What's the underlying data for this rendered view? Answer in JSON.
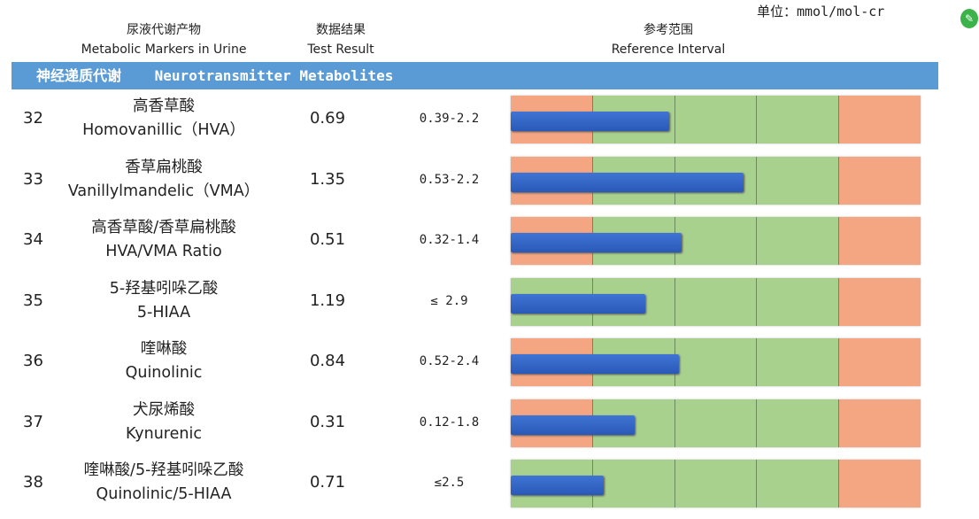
{
  "unit_label": "单位：mmol/mol-cr",
  "headers": {
    "marker_cn": "尿液代谢产物",
    "marker_en": "Metabolic Markers in Urine",
    "result_cn": "数据结果",
    "result_en": "Test Result",
    "ref_cn": "参考范围",
    "ref_en": "Reference Interval"
  },
  "section": {
    "cn": "神经递质代谢",
    "en": "Neurotransmitter Metabolites"
  },
  "colors": {
    "band": "#5b9bd5",
    "out_of_range": "#f4a582",
    "in_range": "#a9d18e",
    "bar": "#2f63c6"
  },
  "rows": [
    {
      "num": "32",
      "cn": "高香草酸",
      "en": "Homovanillic（HVA）",
      "value": "0.69",
      "ref": "0.39-2.2",
      "segments": [
        "o",
        "g",
        "g",
        "g",
        "o"
      ],
      "bar_fraction": 0.387
    },
    {
      "num": "33",
      "cn": "香草扁桃酸",
      "en": "Vanillylmandelic（VMA）",
      "value": "1.35",
      "ref": "0.53-2.2",
      "segments": [
        "o",
        "g",
        "g",
        "g",
        "o"
      ],
      "bar_fraction": 0.568
    },
    {
      "num": "34",
      "cn": "高香草酸/香草扁桃酸",
      "en": "HVA/VMA Ratio",
      "value": "0.51",
      "ref": "0.32-1.4",
      "segments": [
        "o",
        "g",
        "g",
        "g",
        "o"
      ],
      "bar_fraction": 0.417
    },
    {
      "num": "35",
      "cn": "5-羟基吲哚乙酸",
      "en": "5-HIAA",
      "value": "1.19",
      "ref": "≤ 2.9",
      "segments": [
        "g",
        "g",
        "g",
        "g",
        "o"
      ],
      "bar_fraction": 0.328
    },
    {
      "num": "36",
      "cn": "喹啉酸",
      "en": "Quinolinic",
      "value": "0.84",
      "ref": "0.52-2.4",
      "segments": [
        "o",
        "g",
        "g",
        "g",
        "o"
      ],
      "bar_fraction": 0.41
    },
    {
      "num": "37",
      "cn": "犬尿烯酸",
      "en": "Kynurenic",
      "value": "0.31",
      "ref": "0.12-1.8",
      "segments": [
        "o",
        "g",
        "g",
        "g",
        "o"
      ],
      "bar_fraction": 0.302
    },
    {
      "num": "38",
      "cn": "喹啉酸/5-羟基吲哚乙酸",
      "en": "Quinolinic/5-HIAA",
      "value": "0.71",
      "ref": "≤2.5",
      "segments": [
        "g",
        "g",
        "g",
        "g",
        "o"
      ],
      "bar_fraction": 0.227
    }
  ]
}
